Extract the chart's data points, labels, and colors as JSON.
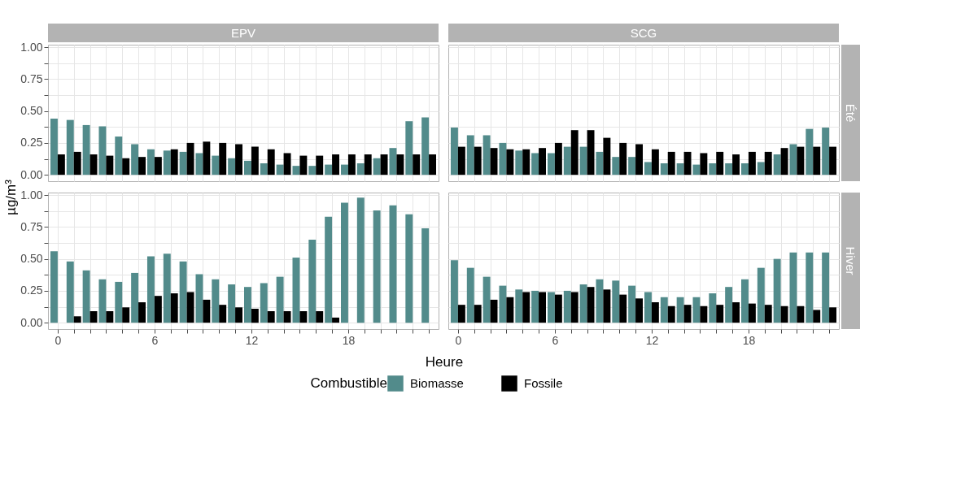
{
  "chart_data": [
    {
      "type": "bar",
      "title": "EPV",
      "ylabel": "µg/m³",
      "legend_title": "Combustible",
      "legend": "bottom",
      "tick_labels": "y",
      "grid": true,
      "x": [
        0,
        1,
        2,
        3,
        4,
        5,
        6,
        7,
        8,
        9,
        10,
        11,
        12,
        13,
        14,
        15,
        16,
        17,
        18,
        19,
        20,
        21,
        22,
        23
      ],
      "series": [
        {
          "name": "Biomasse",
          "color": "#528b8b",
          "values": [
            0.44,
            0.43,
            0.39,
            0.38,
            0.3,
            0.24,
            0.2,
            0.19,
            0.18,
            0.17,
            0.15,
            0.13,
            0.11,
            0.09,
            0.08,
            0.07,
            0.07,
            0.08,
            0.08,
            0.09,
            0.13,
            0.21,
            0.42,
            0.45
          ]
        },
        {
          "name": "Fossile",
          "color": "#000000",
          "values": [
            0.16,
            0.18,
            0.16,
            0.15,
            0.13,
            0.14,
            0.14,
            0.2,
            0.25,
            0.26,
            0.25,
            0.24,
            0.22,
            0.2,
            0.17,
            0.15,
            0.15,
            0.16,
            0.16,
            0.16,
            0.16,
            0.16,
            0.16,
            0.16
          ]
        }
      ],
      "xlim": [
        -0.6,
        23.6
      ],
      "xticks": [
        0,
        {
          "value": 1,
          "label": null
        },
        {
          "value": 2,
          "label": null
        },
        {
          "value": 3,
          "label": null
        },
        {
          "value": 4,
          "label": null
        },
        {
          "value": 5,
          "label": null
        },
        6,
        {
          "value": 7,
          "label": null
        },
        {
          "value": 8,
          "label": null
        },
        {
          "value": 9,
          "label": null
        },
        {
          "value": 10,
          "label": null
        },
        {
          "value": 11,
          "label": null
        },
        12,
        {
          "value": 13,
          "label": null
        },
        {
          "value": 14,
          "label": null
        },
        {
          "value": 15,
          "label": null
        },
        {
          "value": 16,
          "label": null
        },
        {
          "value": 17,
          "label": null
        },
        18,
        {
          "value": 19,
          "label": null
        },
        {
          "value": 20,
          "label": null
        },
        {
          "value": 21,
          "label": null
        },
        {
          "value": 22,
          "label": null
        },
        {
          "value": 23,
          "label": null
        }
      ],
      "ylim": [
        -0.05,
        1.02
      ],
      "yticks": [
        {
          "value": 0,
          "label": "0.00"
        },
        {
          "value": 0.125,
          "label": null
        },
        {
          "value": 0.25,
          "label": "0.25"
        },
        {
          "value": 0.375,
          "label": null
        },
        {
          "value": 0.5,
          "label": "0.50"
        },
        {
          "value": 0.625,
          "label": null
        },
        {
          "value": 0.75,
          "label": "0.75"
        },
        {
          "value": 0.875,
          "label": null
        },
        {
          "value": 1,
          "label": "1.00"
        }
      ]
    },
    {
      "type": "bar",
      "title": "SCG",
      "y2label": "Été",
      "tick_labels": false,
      "grid": true,
      "x": [
        0,
        1,
        2,
        3,
        4,
        5,
        6,
        7,
        8,
        9,
        10,
        11,
        12,
        13,
        14,
        15,
        16,
        17,
        18,
        19,
        20,
        21,
        22,
        23
      ],
      "series": [
        {
          "color": "#528b8b",
          "values": [
            0.37,
            0.31,
            0.31,
            0.25,
            0.19,
            0.17,
            0.17,
            0.22,
            0.22,
            0.18,
            0.14,
            0.14,
            0.1,
            0.09,
            0.09,
            0.08,
            0.09,
            0.09,
            0.09,
            0.1,
            0.16,
            0.24,
            0.36,
            0.37
          ]
        },
        {
          "color": "#000000",
          "values": [
            0.22,
            0.22,
            0.21,
            0.2,
            0.2,
            0.21,
            0.25,
            0.35,
            0.35,
            0.29,
            0.25,
            0.24,
            0.2,
            0.18,
            0.18,
            0.17,
            0.18,
            0.16,
            0.18,
            0.18,
            0.21,
            0.22,
            0.22,
            0.22
          ]
        }
      ],
      "xlim": [
        -0.6,
        23.6
      ],
      "xticks": [
        0,
        {
          "value": 1,
          "label": null
        },
        {
          "value": 2,
          "label": null
        },
        {
          "value": 3,
          "label": null
        },
        {
          "value": 4,
          "label": null
        },
        {
          "value": 5,
          "label": null
        },
        6,
        {
          "value": 7,
          "label": null
        },
        {
          "value": 8,
          "label": null
        },
        {
          "value": 9,
          "label": null
        },
        {
          "value": 10,
          "label": null
        },
        {
          "value": 11,
          "label": null
        },
        12,
        {
          "value": 13,
          "label": null
        },
        {
          "value": 14,
          "label": null
        },
        {
          "value": 15,
          "label": null
        },
        {
          "value": 16,
          "label": null
        },
        {
          "value": 17,
          "label": null
        },
        18,
        {
          "value": 19,
          "label": null
        },
        {
          "value": 20,
          "label": null
        },
        {
          "value": 21,
          "label": null
        },
        {
          "value": 22,
          "label": null
        },
        {
          "value": 23,
          "label": null
        }
      ],
      "ylim": [
        -0.05,
        1.02
      ],
      "yticks": [
        {
          "value": 0,
          "label": null
        },
        {
          "value": 0.125,
          "label": null
        },
        {
          "value": 0.25,
          "label": null
        },
        {
          "value": 0.375,
          "label": null
        },
        {
          "value": 0.5,
          "label": null
        },
        {
          "value": 0.625,
          "label": null
        },
        {
          "value": 0.75,
          "label": null
        },
        {
          "value": 0.875,
          "label": null
        },
        {
          "value": 1,
          "label": null
        }
      ]
    },
    {
      "type": "bar",
      "xlabel": "Heure",
      "grid": true,
      "x": [
        0,
        1,
        2,
        3,
        4,
        5,
        6,
        7,
        8,
        9,
        10,
        11,
        12,
        13,
        14,
        15,
        16,
        17,
        18,
        19,
        20,
        21,
        22,
        23
      ],
      "series": [
        {
          "color": "#528b8b",
          "values": [
            0.56,
            0.48,
            0.41,
            0.34,
            0.32,
            0.39,
            0.52,
            0.54,
            0.48,
            0.38,
            0.34,
            0.3,
            0.28,
            0.31,
            0.36,
            0.51,
            0.65,
            0.83,
            0.94,
            0.98,
            0.88,
            0.92,
            0.85,
            0.74
          ]
        },
        {
          "color": "#000000",
          "values": [
            null,
            0.05,
            0.09,
            0.09,
            0.12,
            0.16,
            0.21,
            0.23,
            0.24,
            0.18,
            0.14,
            0.12,
            0.11,
            0.09,
            0.09,
            0.09,
            0.09,
            0.04,
            null,
            null,
            null,
            null,
            null,
            null
          ]
        }
      ],
      "xlim": [
        -0.6,
        23.6
      ],
      "xticks": [
        0,
        {
          "value": 1,
          "label": null
        },
        {
          "value": 2,
          "label": null
        },
        {
          "value": 3,
          "label": null
        },
        {
          "value": 4,
          "label": null
        },
        {
          "value": 5,
          "label": null
        },
        6,
        {
          "value": 7,
          "label": null
        },
        {
          "value": 8,
          "label": null
        },
        {
          "value": 9,
          "label": null
        },
        {
          "value": 10,
          "label": null
        },
        {
          "value": 11,
          "label": null
        },
        12,
        {
          "value": 13,
          "label": null
        },
        {
          "value": 14,
          "label": null
        },
        {
          "value": 15,
          "label": null
        },
        {
          "value": 16,
          "label": null
        },
        {
          "value": 17,
          "label": null
        },
        18,
        {
          "value": 19,
          "label": null
        },
        {
          "value": 20,
          "label": null
        },
        {
          "value": 21,
          "label": null
        },
        {
          "value": 22,
          "label": null
        },
        {
          "value": 23,
          "label": null
        }
      ],
      "ylim": [
        -0.05,
        1.02
      ],
      "yticks": [
        {
          "value": 0,
          "label": "0.00"
        },
        {
          "value": 0.125,
          "label": null
        },
        {
          "value": 0.25,
          "label": "0.25"
        },
        {
          "value": 0.375,
          "label": null
        },
        {
          "value": 0.5,
          "label": "0.50"
        },
        {
          "value": 0.625,
          "label": null
        },
        {
          "value": 0.75,
          "label": "0.75"
        },
        {
          "value": 0.875,
          "label": null
        },
        {
          "value": 1,
          "label": "1.00"
        }
      ]
    },
    {
      "type": "bar",
      "y2label": "Hiver",
      "tick_labels": "x",
      "grid": true,
      "x": [
        0,
        1,
        2,
        3,
        4,
        5,
        6,
        7,
        8,
        9,
        10,
        11,
        12,
        13,
        14,
        15,
        16,
        17,
        18,
        19,
        20,
        21,
        22,
        23
      ],
      "series": [
        {
          "color": "#528b8b",
          "values": [
            0.49,
            0.43,
            0.36,
            0.29,
            0.26,
            0.25,
            0.24,
            0.25,
            0.3,
            0.34,
            0.33,
            0.29,
            0.24,
            0.2,
            0.2,
            0.2,
            0.23,
            0.28,
            0.34,
            0.43,
            0.5,
            0.55,
            0.55,
            0.55
          ]
        },
        {
          "color": "#000000",
          "values": [
            0.14,
            0.14,
            0.18,
            0.2,
            0.24,
            0.24,
            0.22,
            0.24,
            0.28,
            0.26,
            0.22,
            0.19,
            0.16,
            0.13,
            0.14,
            0.13,
            0.14,
            0.16,
            0.15,
            0.14,
            0.13,
            0.13,
            0.1,
            0.12
          ]
        }
      ],
      "xlim": [
        -0.6,
        23.6
      ],
      "xticks": [
        0,
        {
          "value": 1,
          "label": null
        },
        {
          "value": 2,
          "label": null
        },
        {
          "value": 3,
          "label": null
        },
        {
          "value": 4,
          "label": null
        },
        {
          "value": 5,
          "label": null
        },
        6,
        {
          "value": 7,
          "label": null
        },
        {
          "value": 8,
          "label": null
        },
        {
          "value": 9,
          "label": null
        },
        {
          "value": 10,
          "label": null
        },
        {
          "value": 11,
          "label": null
        },
        12,
        {
          "value": 13,
          "label": null
        },
        {
          "value": 14,
          "label": null
        },
        {
          "value": 15,
          "label": null
        },
        {
          "value": 16,
          "label": null
        },
        {
          "value": 17,
          "label": null
        },
        18,
        {
          "value": 19,
          "label": null
        },
        {
          "value": 20,
          "label": null
        },
        {
          "value": 21,
          "label": null
        },
        {
          "value": 22,
          "label": null
        },
        {
          "value": 23,
          "label": null
        }
      ],
      "ylim": [
        -0.05,
        1.02
      ],
      "yticks": [
        {
          "value": 0,
          "label": null
        },
        {
          "value": 0.125,
          "label": null
        },
        {
          "value": 0.25,
          "label": null
        },
        {
          "value": 0.375,
          "label": null
        },
        {
          "value": 0.5,
          "label": null
        },
        {
          "value": 0.625,
          "label": null
        },
        {
          "value": 0.75,
          "label": null
        },
        {
          "value": 0.875,
          "label": null
        },
        {
          "value": 1,
          "label": null
        }
      ]
    }
  ]
}
